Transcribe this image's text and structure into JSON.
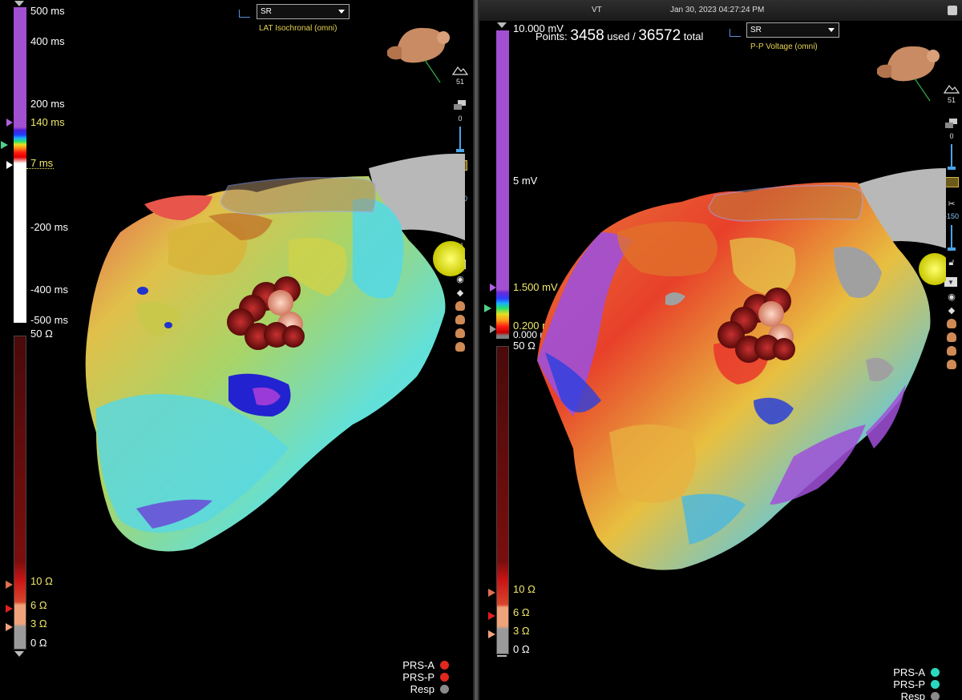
{
  "left_panel": {
    "time_scale": {
      "labels": [
        "500 ms",
        "400 ms",
        "200 ms",
        "140 ms",
        "7 ms",
        "-200 ms",
        "-400 ms",
        "-500 ms"
      ],
      "highlight": [
        "140 ms",
        "7 ms"
      ]
    },
    "impedance_scale": {
      "labels": [
        "50 Ω",
        "10 Ω",
        "6 Ω",
        "3 Ω",
        "0 Ω"
      ]
    },
    "rhythm_select": {
      "value": "SR"
    },
    "map_title": "LAT Isochronal (omni)",
    "tools": {
      "view_count": "51",
      "transparency": "0",
      "clip": "-150"
    },
    "legend": [
      {
        "label": "PRS-A",
        "color": "#e0281e"
      },
      {
        "label": "PRS-P",
        "color": "#e0281e"
      },
      {
        "label": "Resp",
        "color": "#8a8a8a"
      }
    ]
  },
  "right_panel": {
    "header": {
      "rhythm": "VT",
      "timestamp": "Jan 30, 2023 04:27:24 PM"
    },
    "points": {
      "prefix": "Points:",
      "used": "3458",
      "used_label": "used /",
      "total": "36572",
      "total_label": "total"
    },
    "voltage_scale": {
      "labels": [
        "10.000 mV",
        "5 mV",
        "1.500 mV",
        "0.200 mV",
        "0.000 mV"
      ]
    },
    "impedance_scale": {
      "labels": [
        "50 Ω",
        "10 Ω",
        "6 Ω",
        "3 Ω",
        "0 Ω"
      ]
    },
    "rhythm_select": {
      "value": "SR"
    },
    "map_title": "P-P Voltage (omni)",
    "tools": {
      "view_count": "51",
      "transparency": "0",
      "clip": "-150"
    },
    "legend": [
      {
        "label": "PRS-A",
        "color": "#2ad8c0"
      },
      {
        "label": "PRS-P",
        "color": "#2ad8c0"
      },
      {
        "label": "Resp",
        "color": "#8a8a8a"
      }
    ]
  }
}
